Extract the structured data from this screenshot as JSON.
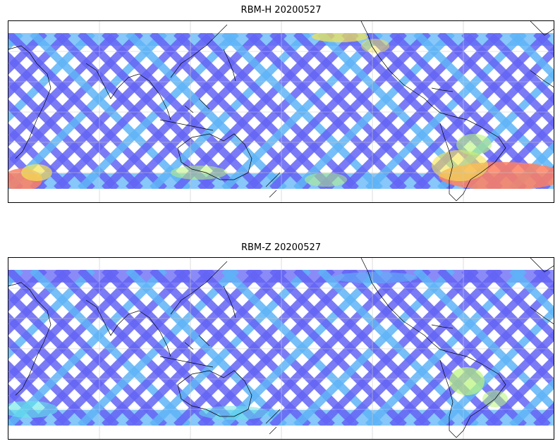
{
  "panels": [
    {
      "title": "RBM-H 20200527"
    },
    {
      "title": "RBM-Z 20200527"
    }
  ],
  "colors": {
    "low": "#6464f5",
    "mid_low": "#5fb4f7",
    "mid": "#64e8e8",
    "mid_high": "#b8f57a",
    "high": "#f5e650",
    "very_high": "#ff8060",
    "coastline": "#000000",
    "gridline": "#c8c8c8"
  }
}
